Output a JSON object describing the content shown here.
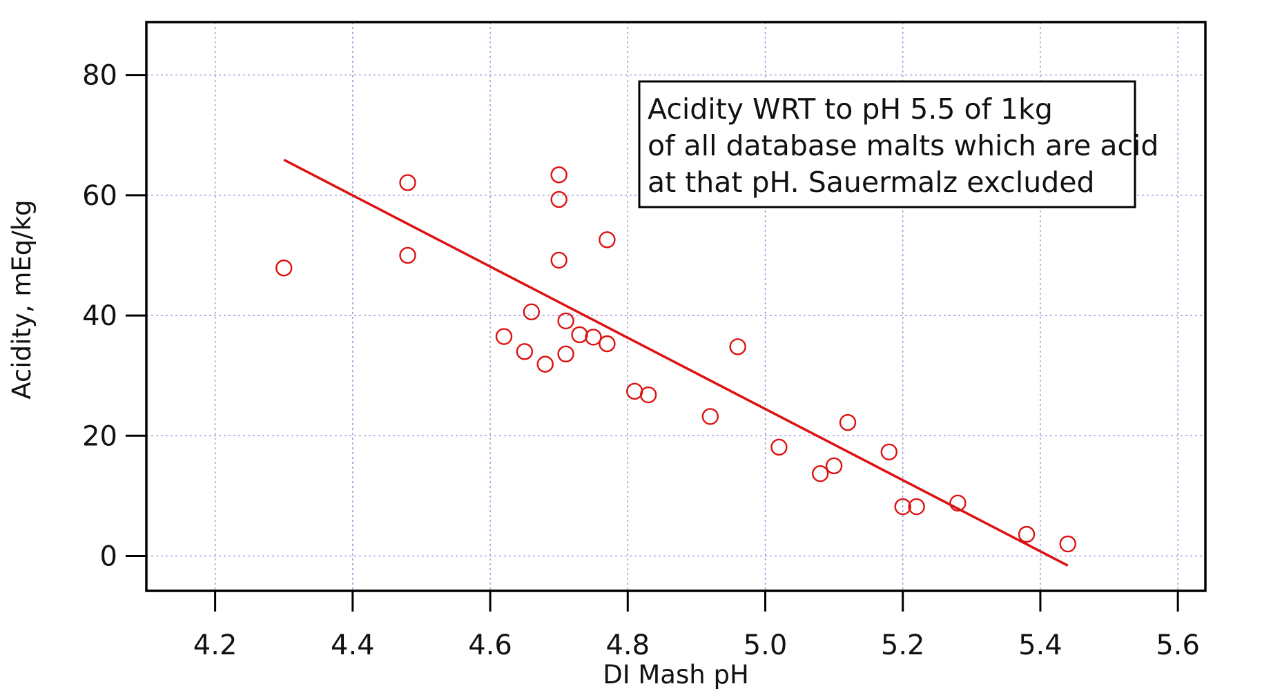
{
  "chart_data": {
    "type": "scatter",
    "xlabel": "DI Mash pH",
    "ylabel": "Acidity, mEq/kg",
    "xlim": [
      4.1,
      5.64
    ],
    "ylim": [
      -5.8,
      88.8
    ],
    "xticks": [
      4.2,
      4.4,
      4.6,
      4.8,
      5.0,
      5.2,
      5.4,
      5.6
    ],
    "xtick_labels": [
      "4.2",
      "4.4",
      "4.6",
      "4.8",
      "5.0",
      "5.2",
      "5.4",
      "5.6"
    ],
    "yticks": [
      0,
      20,
      40,
      60,
      80
    ],
    "ytick_labels": [
      "0",
      "20",
      "40",
      "60",
      "80"
    ],
    "grid": true,
    "annotation": {
      "lines": [
        "Acidity WRT to pH 5.5 of 1kg",
        "of all database malts which are acid",
        "at that pH. Sauermalz excluded"
      ],
      "placement": "top-right"
    },
    "series": [
      {
        "marker": "open-circle",
        "color": "#dd1111",
        "points": [
          [
            4.3,
            47.9
          ],
          [
            4.48,
            62.1
          ],
          [
            4.48,
            50.0
          ],
          [
            4.7,
            63.4
          ],
          [
            4.7,
            59.3
          ],
          [
            4.7,
            49.2
          ],
          [
            4.77,
            52.6
          ],
          [
            4.66,
            40.6
          ],
          [
            4.62,
            36.5
          ],
          [
            4.65,
            34.0
          ],
          [
            4.68,
            31.9
          ],
          [
            4.71,
            39.1
          ],
          [
            4.71,
            33.6
          ],
          [
            4.73,
            36.8
          ],
          [
            4.75,
            36.4
          ],
          [
            4.77,
            35.3
          ],
          [
            4.81,
            27.4
          ],
          [
            4.83,
            26.8
          ],
          [
            4.92,
            23.2
          ],
          [
            4.96,
            34.8
          ],
          [
            5.02,
            18.1
          ],
          [
            5.08,
            13.7
          ],
          [
            5.1,
            15.0
          ],
          [
            5.12,
            22.2
          ],
          [
            5.18,
            17.3
          ],
          [
            5.2,
            8.2
          ],
          [
            5.22,
            8.2
          ],
          [
            5.28,
            8.8
          ],
          [
            5.38,
            3.6
          ],
          [
            5.44,
            2.0
          ]
        ]
      },
      {
        "type": "line",
        "color": "#dd1111",
        "points": [
          [
            4.3,
            65.9
          ],
          [
            5.44,
            -1.6
          ]
        ]
      }
    ]
  }
}
